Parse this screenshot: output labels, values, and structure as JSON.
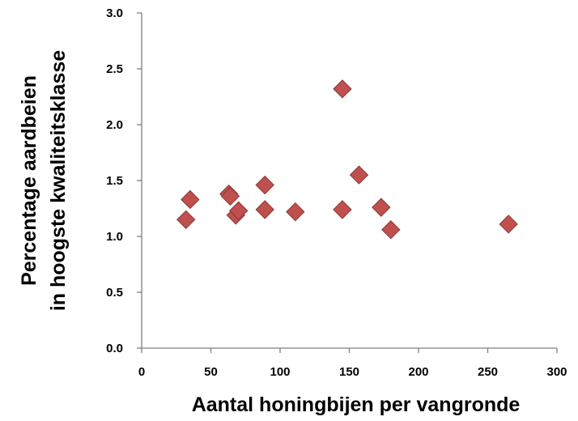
{
  "chart_data": {
    "type": "scatter",
    "title": "",
    "xlabel": "Aantal honingbijen  per vangronde",
    "ylabel_lines": [
      "Percentage aardbeien",
      "in hoogste kwaliteitsklasse"
    ],
    "xlim": [
      0,
      300
    ],
    "ylim": [
      0,
      3.0
    ],
    "x_ticks": [
      0,
      50,
      100,
      150,
      200,
      250,
      300
    ],
    "x_tick_labels": [
      "0",
      "50",
      "100",
      "150",
      "200",
      "250",
      "300"
    ],
    "y_ticks": [
      0,
      0.5,
      1.0,
      1.5,
      2.0,
      2.5,
      3.0
    ],
    "y_tick_labels": [
      "0.0",
      "0.5",
      "1.0",
      "1.5",
      "2.0",
      "2.5",
      "3.0"
    ],
    "grid": false,
    "legend": "none",
    "marker": "diamond",
    "colors": {
      "marker_fill": "#C0504D",
      "marker_stroke": "#8C3836",
      "axis": "#7F7F7F"
    },
    "series": [
      {
        "points": [
          {
            "x": 32,
            "y": 1.15
          },
          {
            "x": 35,
            "y": 1.33
          },
          {
            "x": 63,
            "y": 1.38
          },
          {
            "x": 64,
            "y": 1.36
          },
          {
            "x": 68,
            "y": 1.19
          },
          {
            "x": 70,
            "y": 1.23
          },
          {
            "x": 89,
            "y": 1.46
          },
          {
            "x": 89,
            "y": 1.24
          },
          {
            "x": 111,
            "y": 1.22
          },
          {
            "x": 145,
            "y": 2.32
          },
          {
            "x": 145,
            "y": 1.24
          },
          {
            "x": 157,
            "y": 1.55
          },
          {
            "x": 173,
            "y": 1.26
          },
          {
            "x": 180,
            "y": 1.06
          },
          {
            "x": 265,
            "y": 1.11
          }
        ]
      }
    ]
  }
}
